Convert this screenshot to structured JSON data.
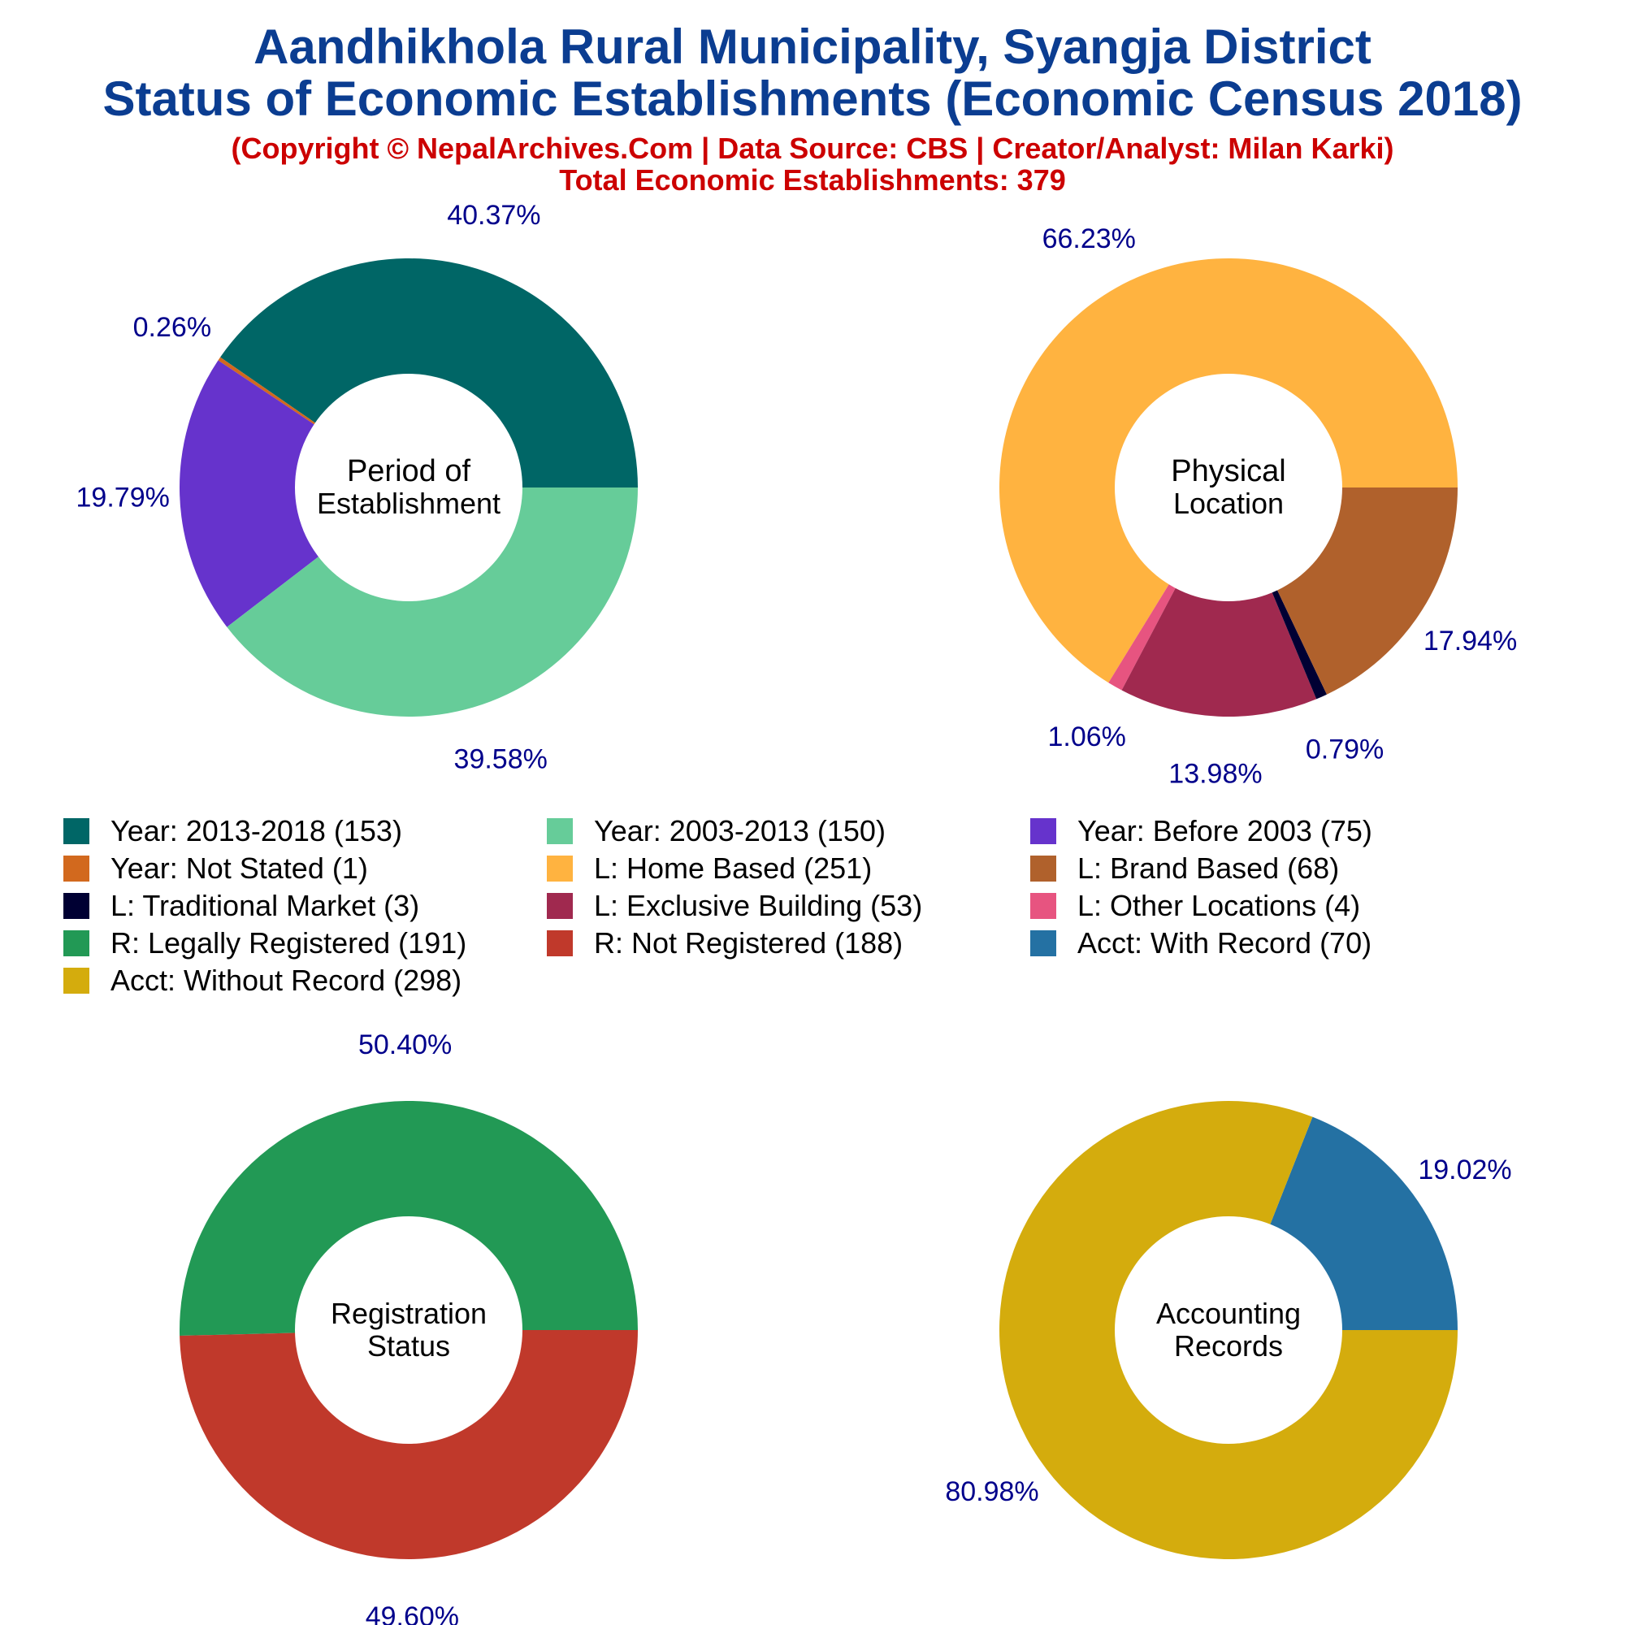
{
  "header": {
    "title_line1": "Aandhikhola Rural Municipality, Syangja District",
    "title_line2": "Status of Economic Establishments (Economic Census 2018)",
    "copyright": "(Copyright © NepalArchives.Com | Data Source: CBS | Creator/Analyst: Milan Karki)",
    "total": "Total Economic Establishments: 379"
  },
  "colors": {
    "title": "#0b3d91",
    "subtitle": "#cc0000",
    "pct_label": "#00008b"
  },
  "chart_data": [
    {
      "type": "pie",
      "donut": true,
      "center_label": [
        "Period of",
        "Establishment"
      ],
      "slices": [
        {
          "label": "Year: 2013-2018",
          "value": 153,
          "pct_label": "40.37%",
          "color": "#006666"
        },
        {
          "label": "Year: Not Stated",
          "value": 1,
          "pct_label": "0.26%",
          "color": "#d2691e"
        },
        {
          "label": "Year: Before 2003",
          "value": 75,
          "pct_label": "19.79%",
          "color": "#6633cc"
        },
        {
          "label": "Year: 2003-2013",
          "value": 150,
          "pct_label": "39.58%",
          "color": "#66cc99"
        }
      ]
    },
    {
      "type": "pie",
      "donut": true,
      "center_label": [
        "Physical",
        "Location"
      ],
      "slices": [
        {
          "label": "L: Home Based",
          "value": 251,
          "pct_label": "66.23%",
          "color": "#ffb340"
        },
        {
          "label": "L: Other Locations",
          "value": 4,
          "pct_label": "1.06%",
          "color": "#e75480"
        },
        {
          "label": "L: Exclusive Building",
          "value": 53,
          "pct_label": "13.98%",
          "color": "#a0294f"
        },
        {
          "label": "L: Traditional Market",
          "value": 3,
          "pct_label": "0.79%",
          "color": "#000033"
        },
        {
          "label": "L: Brand Based",
          "value": 68,
          "pct_label": "17.94%",
          "color": "#b0612c"
        }
      ]
    },
    {
      "type": "pie",
      "donut": true,
      "center_label": [
        "Registration",
        "Status"
      ],
      "slices": [
        {
          "label": "R: Legally Registered",
          "value": 191,
          "pct_label": "50.40%",
          "color": "#229955"
        },
        {
          "label": "R: Not Registered",
          "value": 188,
          "pct_label": "49.60%",
          "color": "#c0392b"
        }
      ]
    },
    {
      "type": "pie",
      "donut": true,
      "center_label": [
        "Accounting",
        "Records"
      ],
      "slices": [
        {
          "label": "Acct: With Record",
          "value": 70,
          "pct_label": "19.02%",
          "color": "#2471a3"
        },
        {
          "label": "Acct: Without Record",
          "value": 298,
          "pct_label": "80.98%",
          "color": "#d4ac0d"
        }
      ]
    }
  ],
  "legend": [
    {
      "label": "Year: 2013-2018 (153)",
      "color": "#006666"
    },
    {
      "label": "Year: 2003-2013 (150)",
      "color": "#66cc99"
    },
    {
      "label": "Year: Before 2003 (75)",
      "color": "#6633cc"
    },
    {
      "label": "Year: Not Stated (1)",
      "color": "#d2691e"
    },
    {
      "label": "L: Home Based (251)",
      "color": "#ffb340"
    },
    {
      "label": "L: Brand Based (68)",
      "color": "#b0612c"
    },
    {
      "label": "L: Traditional Market (3)",
      "color": "#000033"
    },
    {
      "label": "L: Exclusive Building (53)",
      "color": "#a0294f"
    },
    {
      "label": "L: Other Locations (4)",
      "color": "#e75480"
    },
    {
      "label": "R: Legally Registered (191)",
      "color": "#229955"
    },
    {
      "label": "R: Not Registered (188)",
      "color": "#c0392b"
    },
    {
      "label": "Acct: With Record (70)",
      "color": "#2471a3"
    },
    {
      "label": "Acct: Without Record (298)",
      "color": "#d4ac0d"
    }
  ]
}
